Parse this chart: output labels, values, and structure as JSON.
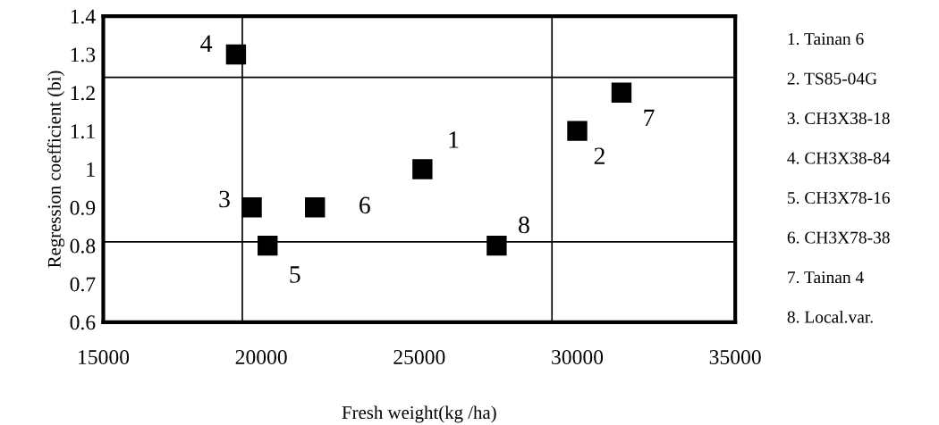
{
  "chart_data": {
    "type": "scatter",
    "xlabel": "Fresh weight(kg /ha)",
    "ylabel": "Regression coefficient (bi)",
    "x": [
      25100,
      30000,
      19700,
      19200,
      20200,
      21700,
      31400,
      27450
    ],
    "values": [
      1.0,
      1.1,
      0.9,
      1.3,
      0.8,
      0.9,
      1.2,
      0.8
    ],
    "color": "#000000",
    "marker": "square",
    "xlim": [
      15000,
      35000
    ],
    "xticks": [
      15000,
      20000,
      25000,
      30000,
      35000
    ],
    "ylim": [
      0.6,
      1.4
    ],
    "yticks": [
      {
        "value": 0.6,
        "label": "0.6"
      },
      {
        "value": 0.7,
        "label": "0.7"
      },
      {
        "value": 0.8,
        "label": "0.8"
      },
      {
        "value": 0.9,
        "label": "0.9"
      },
      {
        "value": 1.0,
        "label": "1"
      },
      {
        "value": 1.1,
        "label": "1.1"
      },
      {
        "value": 1.2,
        "label": "1.2"
      },
      {
        "value": 1.3,
        "label": "1.3"
      },
      {
        "value": 1.4,
        "label": "1.4"
      }
    ],
    "ref_lines": [
      {
        "axis": "x",
        "value": 19400,
        "color": "#000000"
      },
      {
        "axis": "x",
        "value": 29200,
        "color": "#000000"
      },
      {
        "axis": "y",
        "value": 1.24,
        "color": "#000000"
      },
      {
        "axis": "y",
        "value": 0.81,
        "color": "#000000"
      }
    ],
    "grid": false,
    "annotations": [
      {
        "text": "1",
        "x": 25100,
        "y": 1.0
      },
      {
        "text": "2",
        "x": 30000,
        "y": 1.1
      },
      {
        "text": "3",
        "x": 19700,
        "y": 0.9
      },
      {
        "text": "4",
        "x": 19200,
        "y": 1.3
      },
      {
        "text": "5",
        "x": 20200,
        "y": 0.8
      },
      {
        "text": "6",
        "x": 21700,
        "y": 0.9
      },
      {
        "text": "7",
        "x": 31400,
        "y": 1.2
      },
      {
        "text": "8",
        "x": 27450,
        "y": 0.8
      },
      "1. Tainan 6",
      "2. TS85-04G",
      "3. CH3X38-18",
      "4. CH3X38-84",
      "5. CH3X78-16",
      "6. CH3X78-38",
      "7. Tainan 4",
      "8. Local.var."
    ]
  }
}
